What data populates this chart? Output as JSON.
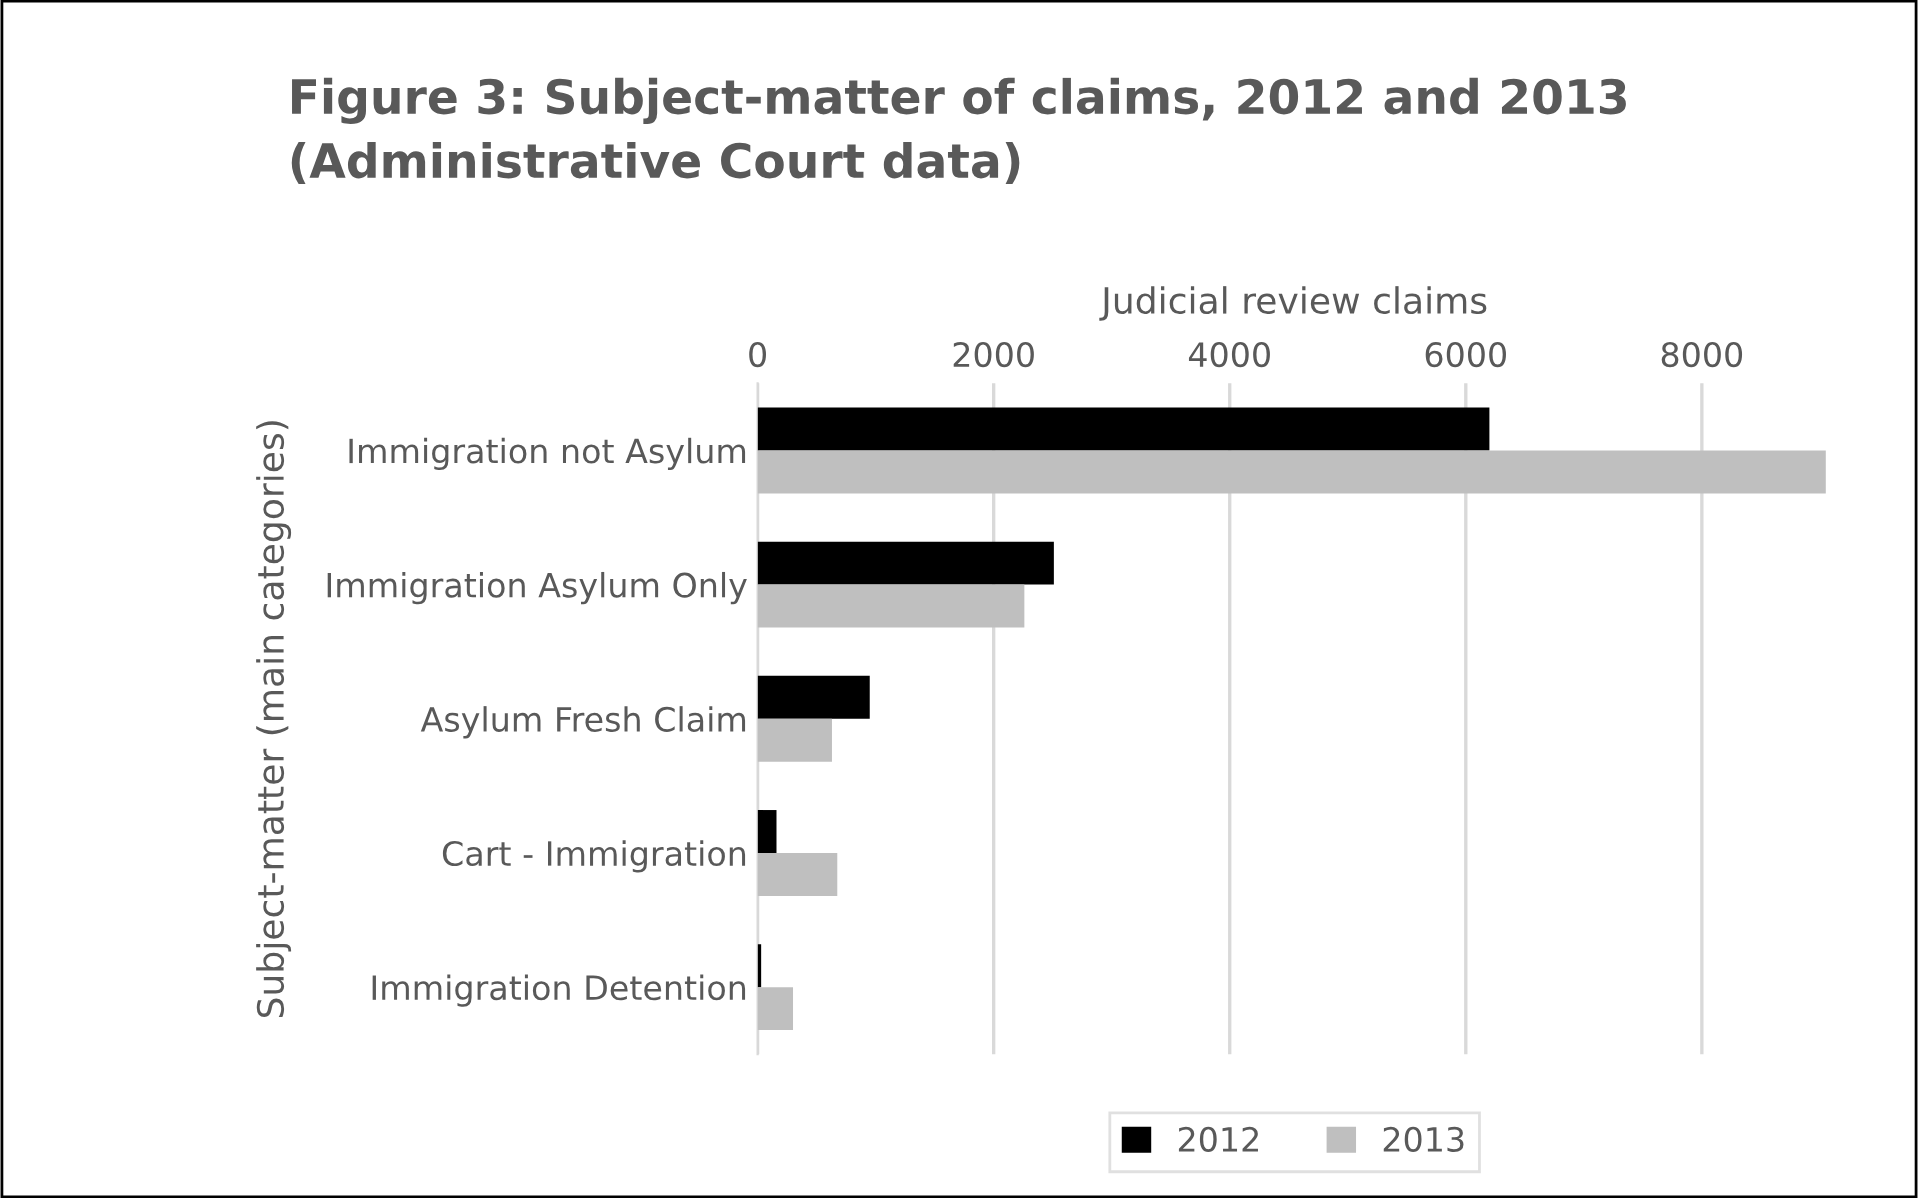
{
  "chart_data": {
    "type": "bar",
    "orientation": "horizontal",
    "title": "Figure 3: Subject-matter of claims, 2012 and 2013\n(Administrative Court data)",
    "xlabel": "Judicial review claims",
    "ylabel": "Subject-matter (main categories)",
    "categories": [
      "Immigration not Asylum",
      "Immigration Asylum Only",
      "Asylum Fresh Claim",
      "Cart - Immigration",
      "Immigration Detention"
    ],
    "series": [
      {
        "name": "2012",
        "color": "#000000",
        "values": [
          6200,
          2510,
          950,
          160,
          30
        ]
      },
      {
        "name": "2013",
        "color": "#bfbfbf",
        "values": [
          9050,
          2260,
          630,
          675,
          300
        ]
      }
    ],
    "xlim": [
      0,
      9100
    ],
    "xticks": [
      0,
      2000,
      4000,
      6000,
      8000
    ],
    "grid": "x",
    "legend": "bottom"
  }
}
